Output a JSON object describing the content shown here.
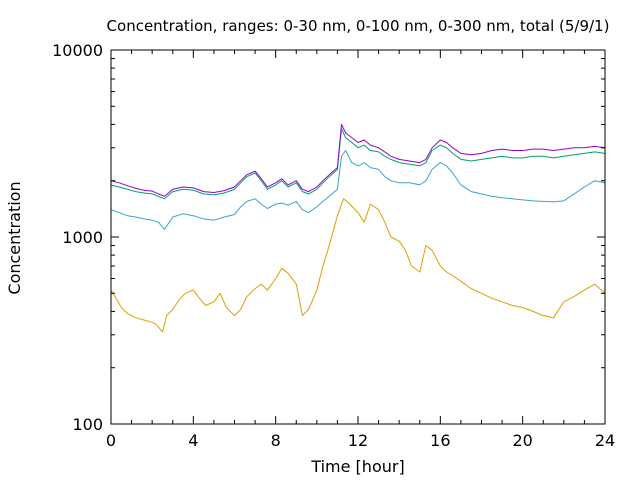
{
  "chart_data": {
    "type": "line",
    "title": "Concentration, ranges: 0-30 nm, 0-100 nm, 0-300 nm, total (5/9/1)",
    "xlabel": "Time [hour]",
    "ylabel": "Concentration",
    "xlim": [
      0,
      24
    ],
    "ylim": [
      100,
      10000
    ],
    "yscale": "log",
    "grid": false,
    "legend": "none",
    "x_ticks": [
      0,
      4,
      8,
      12,
      16,
      20,
      24
    ],
    "x_tick_labels": [
      "0",
      "4",
      "8",
      "12",
      "16",
      "20",
      "24"
    ],
    "y_ticks": [
      100,
      1000,
      10000
    ],
    "y_tick_labels": [
      "100",
      "1000",
      "10000"
    ],
    "series": [
      {
        "color": "#e0a000",
        "x": [
          0,
          0.3,
          0.5,
          0.8,
          1.2,
          1.6,
          2.0,
          2.2,
          2.5,
          2.7,
          3.0,
          3.3,
          3.6,
          4.0,
          4.3,
          4.6,
          5.0,
          5.3,
          5.6,
          6.0,
          6.3,
          6.6,
          7.0,
          7.3,
          7.6,
          8.0,
          8.3,
          8.6,
          9.0,
          9.3,
          9.6,
          10.0,
          10.3,
          10.6,
          11.0,
          11.3,
          11.6,
          12.0,
          12.3,
          12.6,
          13.0,
          13.3,
          13.6,
          14.0,
          14.3,
          14.6,
          15.0,
          15.3,
          15.6,
          16.0,
          16.3,
          16.6,
          17.0,
          17.5,
          18.0,
          18.5,
          19.0,
          19.5,
          20.0,
          20.5,
          21.0,
          21.5,
          22.0,
          22.5,
          23.0,
          23.5,
          24.0
        ],
        "values": [
          520,
          460,
          420,
          390,
          370,
          360,
          350,
          340,
          310,
          380,
          410,
          460,
          500,
          520,
          470,
          430,
          450,
          500,
          420,
          380,
          410,
          480,
          530,
          560,
          520,
          600,
          680,
          640,
          560,
          380,
          410,
          520,
          700,
          900,
          1300,
          1600,
          1500,
          1350,
          1200,
          1500,
          1400,
          1200,
          1000,
          950,
          850,
          700,
          650,
          900,
          850,
          700,
          650,
          620,
          580,
          530,
          500,
          470,
          450,
          430,
          420,
          400,
          380,
          370,
          450,
          480,
          520,
          560,
          500
        ]
      },
      {
        "color": "#3ba3d0",
        "x": [
          0,
          0.4,
          0.8,
          1.2,
          1.6,
          2.0,
          2.3,
          2.6,
          3.0,
          3.5,
          4.0,
          4.5,
          5.0,
          5.5,
          6.0,
          6.3,
          6.6,
          7.0,
          7.3,
          7.6,
          8.0,
          8.3,
          8.6,
          9.0,
          9.3,
          9.6,
          10.0,
          10.3,
          10.6,
          11.0,
          11.2,
          11.4,
          11.7,
          12.0,
          12.3,
          12.6,
          13.0,
          13.3,
          13.6,
          14.0,
          14.5,
          15.0,
          15.3,
          15.6,
          16.0,
          16.3,
          16.6,
          17.0,
          17.5,
          18.0,
          18.5,
          19.0,
          19.5,
          20.0,
          20.5,
          21.0,
          21.5,
          22.0,
          22.5,
          23.0,
          23.5,
          24.0
        ],
        "values": [
          1400,
          1350,
          1300,
          1280,
          1250,
          1230,
          1200,
          1100,
          1280,
          1330,
          1300,
          1250,
          1230,
          1280,
          1320,
          1450,
          1550,
          1600,
          1500,
          1420,
          1500,
          1520,
          1480,
          1550,
          1400,
          1350,
          1450,
          1550,
          1650,
          1800,
          2700,
          2900,
          2500,
          2400,
          2500,
          2350,
          2300,
          2100,
          2000,
          1950,
          1950,
          1900,
          2000,
          2300,
          2500,
          2400,
          2200,
          1900,
          1750,
          1700,
          1650,
          1620,
          1600,
          1580,
          1560,
          1550,
          1540,
          1560,
          1700,
          1850,
          2000,
          1950
        ]
      },
      {
        "color": "#009e73",
        "x": [
          0,
          0.4,
          0.8,
          1.2,
          1.6,
          2.0,
          2.3,
          2.6,
          3.0,
          3.5,
          4.0,
          4.5,
          5.0,
          5.5,
          6.0,
          6.3,
          6.6,
          7.0,
          7.3,
          7.6,
          8.0,
          8.3,
          8.6,
          9.0,
          9.3,
          9.6,
          10.0,
          10.3,
          10.6,
          11.0,
          11.2,
          11.4,
          11.7,
          12.0,
          12.3,
          12.6,
          13.0,
          13.3,
          13.6,
          14.0,
          14.5,
          15.0,
          15.3,
          15.6,
          16.0,
          16.3,
          16.6,
          17.0,
          17.5,
          18.0,
          18.5,
          19.0,
          19.5,
          20.0,
          20.5,
          21.0,
          21.5,
          22.0,
          22.5,
          23.0,
          23.5,
          24.0
        ],
        "values": [
          1900,
          1850,
          1800,
          1750,
          1720,
          1700,
          1650,
          1600,
          1750,
          1800,
          1780,
          1700,
          1680,
          1720,
          1800,
          1950,
          2100,
          2200,
          2000,
          1800,
          1900,
          2000,
          1850,
          1950,
          1750,
          1700,
          1800,
          1950,
          2100,
          2300,
          3800,
          3400,
          3200,
          3000,
          3100,
          2900,
          2850,
          2700,
          2600,
          2500,
          2450,
          2400,
          2500,
          2900,
          3100,
          3000,
          2800,
          2600,
          2550,
          2600,
          2650,
          2700,
          2650,
          2650,
          2700,
          2700,
          2650,
          2700,
          2750,
          2800,
          2850,
          2800
        ]
      },
      {
        "color": "#9400d3",
        "x": [
          0,
          0.4,
          0.8,
          1.2,
          1.6,
          2.0,
          2.3,
          2.6,
          3.0,
          3.5,
          4.0,
          4.5,
          5.0,
          5.5,
          6.0,
          6.3,
          6.6,
          7.0,
          7.3,
          7.6,
          8.0,
          8.3,
          8.6,
          9.0,
          9.3,
          9.6,
          10.0,
          10.3,
          10.6,
          11.0,
          11.2,
          11.4,
          11.7,
          12.0,
          12.3,
          12.6,
          13.0,
          13.3,
          13.6,
          14.0,
          14.5,
          15.0,
          15.3,
          15.6,
          16.0,
          16.3,
          16.6,
          17.0,
          17.5,
          18.0,
          18.5,
          19.0,
          19.5,
          20.0,
          20.5,
          21.0,
          21.5,
          22.0,
          22.5,
          23.0,
          23.5,
          24.0
        ],
        "values": [
          2000,
          1950,
          1880,
          1820,
          1780,
          1760,
          1700,
          1650,
          1800,
          1850,
          1830,
          1750,
          1730,
          1770,
          1850,
          2000,
          2150,
          2250,
          2050,
          1850,
          1950,
          2050,
          1900,
          2000,
          1800,
          1750,
          1850,
          2000,
          2150,
          2350,
          4000,
          3600,
          3400,
          3200,
          3300,
          3100,
          3000,
          2850,
          2700,
          2600,
          2550,
          2500,
          2600,
          3000,
          3300,
          3200,
          3000,
          2800,
          2750,
          2800,
          2900,
          2950,
          2900,
          2900,
          2950,
          2950,
          2900,
          2950,
          3000,
          3000,
          3050,
          3000
        ]
      }
    ]
  }
}
